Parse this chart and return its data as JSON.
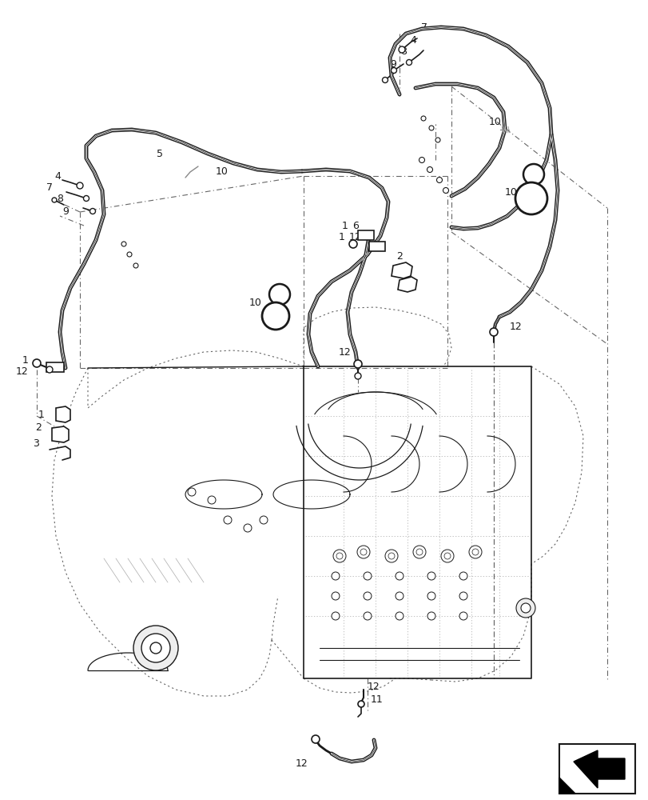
{
  "background_color": "#ffffff",
  "line_color": "#1a1a1a",
  "gray_color": "#888888",
  "dotted_color": "#666666"
}
